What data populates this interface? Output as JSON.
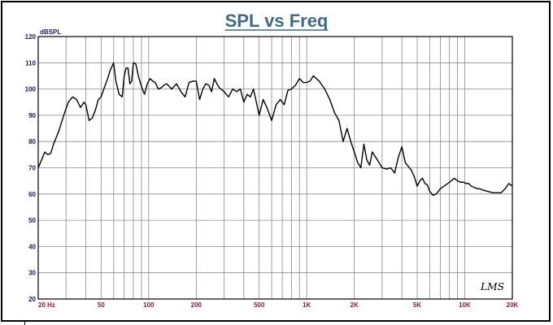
{
  "chart_data": {
    "type": "line",
    "title": "SPL vs Freq",
    "ylabel": "dBSPL",
    "xlabel": "",
    "x_scale": "log",
    "xlim": [
      20,
      20000
    ],
    "ylim": [
      20,
      120
    ],
    "grid": true,
    "y_ticks": [
      20,
      30,
      40,
      50,
      60,
      70,
      80,
      90,
      100,
      110,
      120
    ],
    "x_ticks": [
      {
        "value": 20,
        "label": "20 Hz"
      },
      {
        "value": 50,
        "label": "50"
      },
      {
        "value": 100,
        "label": "100"
      },
      {
        "value": 200,
        "label": "200"
      },
      {
        "value": 500,
        "label": "500"
      },
      {
        "value": 1000,
        "label": "1K"
      },
      {
        "value": 2000,
        "label": "2K"
      },
      {
        "value": 5000,
        "label": "5K"
      },
      {
        "value": 10000,
        "label": "10K"
      },
      {
        "value": 20000,
        "label": "20K"
      }
    ],
    "series": [
      {
        "x": [
          20,
          21,
          22,
          23,
          24,
          25,
          27,
          29,
          31,
          33,
          35,
          37,
          39,
          40,
          42,
          44,
          46,
          48,
          50,
          52,
          55,
          57,
          60,
          62,
          65,
          68,
          70,
          72,
          74,
          76,
          78,
          80,
          83,
          86,
          90,
          94,
          98,
          102,
          106,
          110,
          115,
          120,
          125,
          130,
          140,
          150,
          160,
          170,
          180,
          190,
          200,
          210,
          220,
          230,
          240,
          250,
          260,
          270,
          280,
          300,
          320,
          340,
          360,
          380,
          400,
          420,
          440,
          460,
          480,
          500,
          530,
          560,
          600,
          640,
          680,
          720,
          760,
          800,
          850,
          900,
          950,
          1000,
          1050,
          1100,
          1200,
          1300,
          1400,
          1500,
          1600,
          1700,
          1800,
          1900,
          2000,
          2100,
          2200,
          2300,
          2400,
          2500,
          2600,
          2800,
          3000,
          3200,
          3400,
          3600,
          3800,
          4000,
          4200,
          4400,
          4600,
          4800,
          5000,
          5200,
          5400,
          5600,
          5800,
          6000,
          6300,
          6600,
          7000,
          7400,
          7800,
          8200,
          8600,
          9000,
          9400,
          9800,
          10200,
          10600,
          11000,
          11500,
          12000,
          12500,
          13000,
          14000,
          15000,
          16000,
          17000,
          18000,
          19000,
          20000
        ],
        "y": [
          70,
          73,
          76,
          75,
          75.5,
          79,
          84,
          90,
          95,
          97,
          96,
          93,
          95,
          94,
          88,
          89,
          92,
          96,
          97,
          100,
          104,
          107,
          110,
          103,
          98,
          97,
          105,
          108,
          108,
          102,
          103,
          110,
          109.5,
          105,
          101,
          98,
          102,
          104,
          103,
          102.5,
          100,
          100.5,
          101.5,
          102,
          100,
          102,
          99,
          97,
          102.5,
          103,
          103,
          96,
          100,
          102,
          101.5,
          99,
          104,
          102,
          100.5,
          99,
          97,
          100,
          99,
          100,
          95,
          98,
          97,
          100,
          95,
          90,
          96,
          93,
          88,
          94,
          96,
          94,
          99.5,
          100,
          101.5,
          104,
          102.5,
          102.5,
          103,
          105,
          103,
          100,
          96,
          91,
          88,
          80,
          85,
          80,
          76,
          72,
          70,
          79,
          73,
          71,
          76,
          73,
          70,
          69.5,
          70,
          68,
          74,
          78,
          72,
          70.5,
          69,
          66.5,
          63,
          65,
          66,
          64,
          63.5,
          61,
          59.5,
          60,
          62,
          63,
          64,
          65,
          66,
          65,
          64.5,
          64.5,
          64,
          64,
          63,
          62.5,
          62,
          62,
          61.5,
          61,
          60.5,
          60.5,
          60.5,
          62,
          64,
          63
        ]
      }
    ]
  },
  "signature": "LMS"
}
